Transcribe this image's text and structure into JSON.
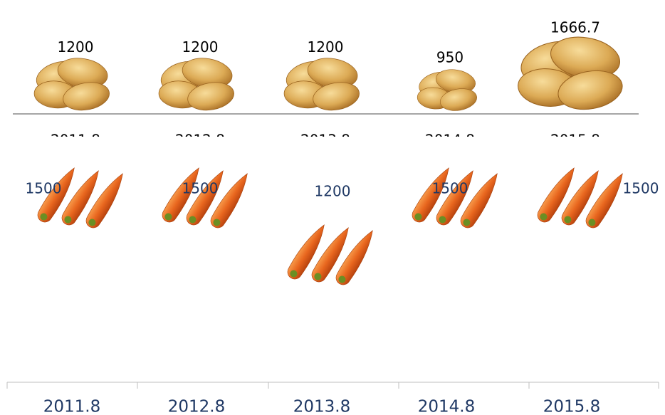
{
  "chart_data": [
    {
      "type": "pictograph",
      "icon": "potato",
      "categories": [
        "2011.8",
        "2012.8",
        "2013.8",
        "2014.8",
        "2015.8"
      ],
      "values": [
        1200,
        1200,
        1200,
        950,
        1666.7
      ],
      "label_color": "#000000"
    },
    {
      "type": "pictograph",
      "icon": "carrot",
      "categories": [
        "2011.8",
        "2012.8",
        "2013.8",
        "2014.8",
        "2015.8"
      ],
      "values": [
        1500,
        1500,
        1200,
        1500,
        1500
      ],
      "label_color": "#1f3864"
    }
  ]
}
